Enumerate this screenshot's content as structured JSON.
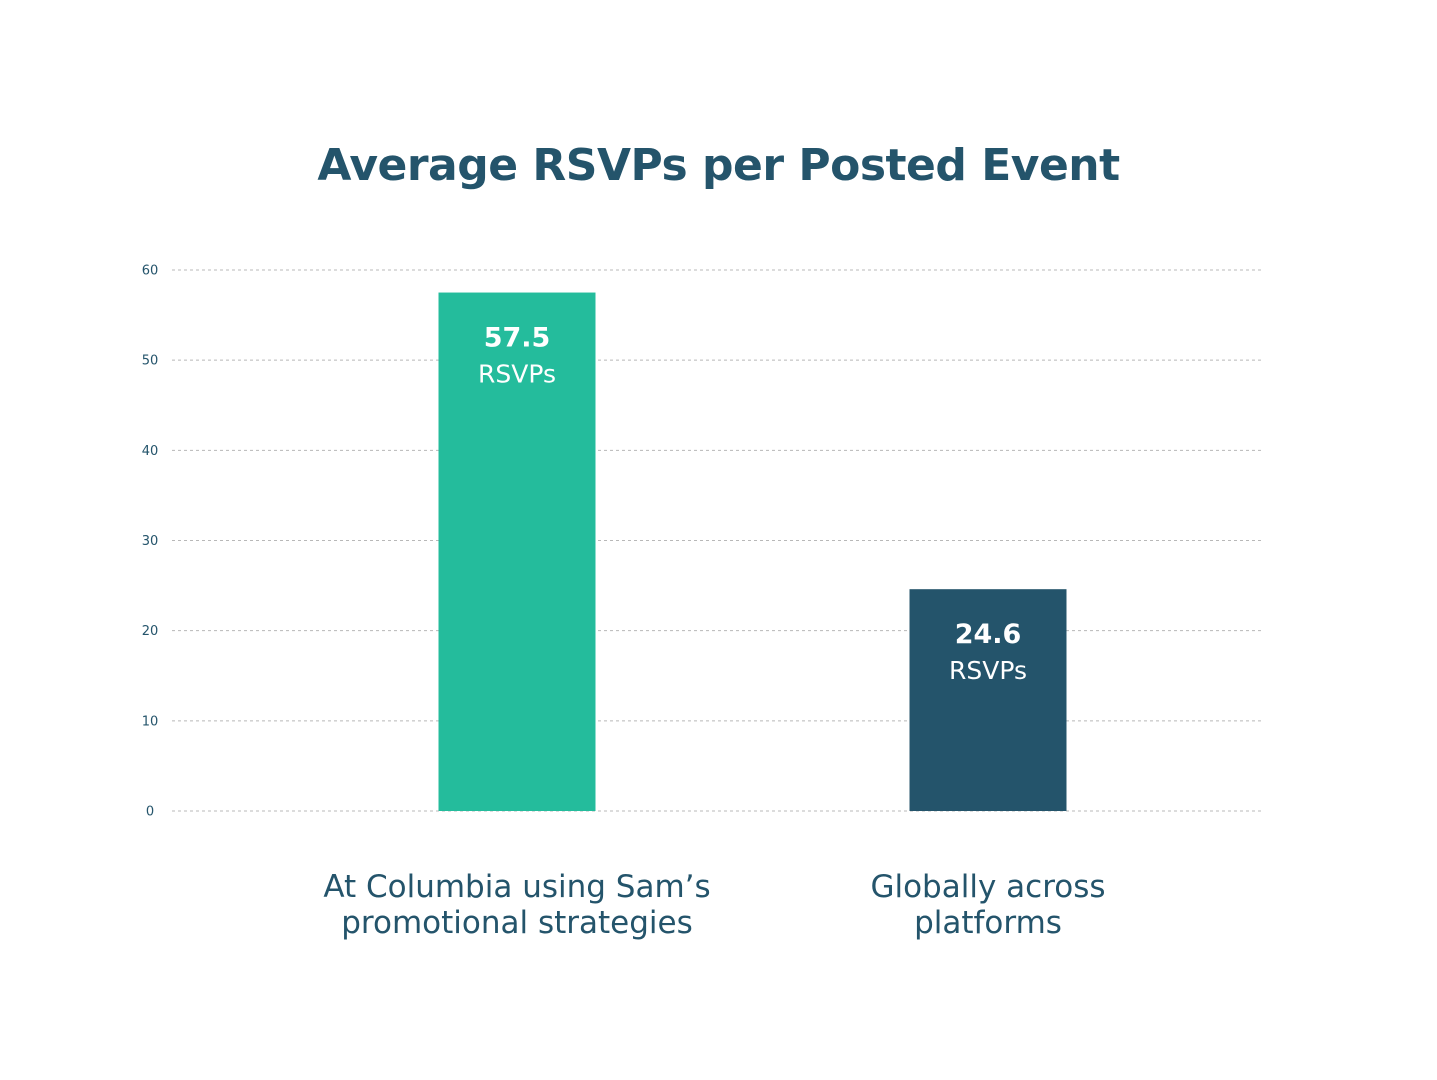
{
  "chart_data": {
    "type": "bar",
    "title": "Average RSVPs per Posted Event",
    "categories": [
      [
        "At Columbia using Sam’s",
        "promotional strategies"
      ],
      [
        "Globally across",
        "platforms"
      ]
    ],
    "values": [
      57.5,
      24.6
    ],
    "value_labels": [
      "57.5",
      "24.6"
    ],
    "value_unit": "RSVPs",
    "bar_colors": [
      "#24bc9c",
      "#24546b"
    ],
    "xlabel": "",
    "ylabel": "",
    "ylim": [
      0,
      60
    ],
    "yticks": [
      0,
      10,
      20,
      30,
      40,
      50,
      60
    ],
    "grid": true,
    "grid_style": "dashed",
    "legend": "none"
  },
  "colors": {
    "title": "#24546b",
    "axis_text": "#24546b",
    "grid": "#b8b8b8",
    "background": "#ffffff"
  }
}
